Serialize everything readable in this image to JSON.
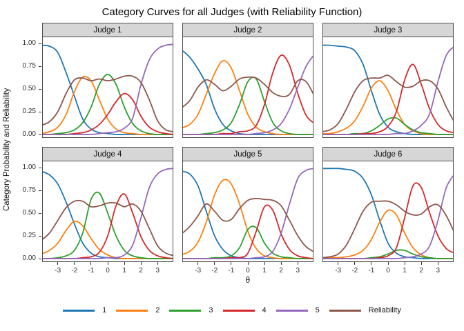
{
  "title": "Category Curves for all Judges (with Reliability Function)",
  "axes": {
    "y": {
      "label": "Category Probability and Reliability",
      "ticks": [
        "0.00",
        "0.25",
        "0.50",
        "0.75",
        "1.00"
      ],
      "tick_values": [
        0,
        0.25,
        0.5,
        0.75,
        1
      ]
    },
    "x": {
      "label": "θ",
      "ticks": [
        "-3",
        "-2",
        "-1",
        "0",
        "1",
        "2",
        "3"
      ],
      "tick_values": [
        -3,
        -2,
        -1,
        0,
        1,
        2,
        3
      ]
    }
  },
  "legend": [
    {
      "label": "1",
      "color": "#1f77b4"
    },
    {
      "label": "2",
      "color": "#ff7f0e"
    },
    {
      "label": "3",
      "color": "#2ca02c"
    },
    {
      "label": "4",
      "color": "#d62728"
    },
    {
      "label": "5",
      "color": "#9467bd"
    },
    {
      "label": "Reliability",
      "color": "#8c564b"
    }
  ],
  "style": {
    "strip_background": "#d6d6d6",
    "panel_border": "#4d4d4d",
    "tick_color": "#333333"
  },
  "chart_data": {
    "type": "line",
    "title": "Category Curves for all Judges (with Reliability Function)",
    "xlabel": "θ",
    "ylabel": "Category Probability and Reliability",
    "facet_layout": "2 rows x 3 cols",
    "grid": "off",
    "legend_position": "bottom",
    "xlim": [
      -3.9,
      3.9
    ],
    "ylim": [
      -0.03,
      1.06
    ],
    "x": [
      -4,
      -3.5,
      -3,
      -2.5,
      -2,
      -1.5,
      -1,
      -0.5,
      0,
      0.5,
      1,
      1.5,
      2,
      2.5,
      3,
      3.5,
      4
    ],
    "panels": [
      {
        "title": "Judge 1",
        "series": [
          {
            "name": "1",
            "values": [
              0.98,
              0.97,
              0.9,
              0.68,
              0.42,
              0.17,
              0.06,
              0.02,
              0.01,
              0,
              0,
              0,
              0,
              0,
              0,
              0,
              0
            ]
          },
          {
            "name": "2",
            "values": [
              0.01,
              0.03,
              0.08,
              0.22,
              0.47,
              0.63,
              0.59,
              0.38,
              0.17,
              0.06,
              0.02,
              0.01,
              0,
              0,
              0,
              0,
              0
            ]
          },
          {
            "name": "3",
            "values": [
              0,
              0,
              0.01,
              0.02,
              0.05,
              0.13,
              0.3,
              0.55,
              0.66,
              0.55,
              0.3,
              0.12,
              0.04,
              0.01,
              0,
              0,
              0
            ]
          },
          {
            "name": "4",
            "values": [
              0,
              0,
              0,
              0,
              0.01,
              0.02,
              0.05,
              0.11,
              0.22,
              0.36,
              0.45,
              0.38,
              0.2,
              0.08,
              0.03,
              0.01,
              0
            ]
          },
          {
            "name": "5",
            "values": [
              0,
              0,
              0,
              0,
              0,
              0,
              0,
              0.01,
              0.02,
              0.03,
              0.07,
              0.18,
              0.55,
              0.82,
              0.94,
              0.98,
              0.99
            ]
          },
          {
            "name": "Reliability",
            "values": [
              0.1,
              0.14,
              0.25,
              0.45,
              0.6,
              0.62,
              0.59,
              0.61,
              0.59,
              0.61,
              0.64,
              0.64,
              0.57,
              0.38,
              0.15,
              0.05,
              0.03
            ]
          }
        ]
      },
      {
        "title": "Judge 2",
        "series": [
          {
            "name": "1",
            "values": [
              0.93,
              0.85,
              0.72,
              0.55,
              0.28,
              0.11,
              0.04,
              0.01,
              0,
              0,
              0,
              0,
              0,
              0,
              0,
              0,
              0
            ]
          },
          {
            "name": "2",
            "values": [
              0.07,
              0.11,
              0.22,
              0.44,
              0.67,
              0.81,
              0.73,
              0.48,
              0.22,
              0.08,
              0.03,
              0.01,
              0,
              0,
              0,
              0,
              0
            ]
          },
          {
            "name": "3",
            "values": [
              0,
              0,
              0,
              0.01,
              0.02,
              0.05,
              0.13,
              0.33,
              0.58,
              0.61,
              0.36,
              0.13,
              0.04,
              0.01,
              0,
              0,
              0
            ]
          },
          {
            "name": "4",
            "values": [
              0,
              0,
              0,
              0,
              0,
              0.01,
              0.01,
              0.03,
              0.04,
              0.1,
              0.33,
              0.68,
              0.87,
              0.76,
              0.45,
              0.21,
              0.12
            ]
          },
          {
            "name": "5",
            "values": [
              0,
              0,
              0,
              0,
              0,
              0,
              0,
              0,
              0,
              0.01,
              0.02,
              0.05,
              0.12,
              0.28,
              0.52,
              0.75,
              0.88
            ]
          },
          {
            "name": "Reliability",
            "values": [
              0.29,
              0.37,
              0.52,
              0.6,
              0.55,
              0.48,
              0.53,
              0.61,
              0.63,
              0.62,
              0.55,
              0.46,
              0.42,
              0.44,
              0.59,
              0.58,
              0.42
            ]
          }
        ]
      },
      {
        "title": "Judge 3",
        "series": [
          {
            "name": "1",
            "values": [
              0.98,
              0.98,
              0.97,
              0.96,
              0.92,
              0.77,
              0.48,
              0.22,
              0.08,
              0.03,
              0.01,
              0,
              0,
              0,
              0,
              0,
              0
            ]
          },
          {
            "name": "2",
            "values": [
              0.01,
              0.01,
              0.03,
              0.07,
              0.15,
              0.31,
              0.51,
              0.59,
              0.48,
              0.27,
              0.11,
              0.04,
              0.01,
              0,
              0,
              0,
              0
            ]
          },
          {
            "name": "3",
            "values": [
              0,
              0,
              0,
              0,
              0.01,
              0.01,
              0.04,
              0.1,
              0.17,
              0.18,
              0.11,
              0.05,
              0.02,
              0.01,
              0,
              0,
              0
            ]
          },
          {
            "name": "4",
            "values": [
              0,
              0,
              0,
              0,
              0,
              0.01,
              0.01,
              0.03,
              0.09,
              0.25,
              0.6,
              0.77,
              0.55,
              0.28,
              0.11,
              0.04,
              0.02
            ]
          },
          {
            "name": "5",
            "values": [
              0,
              0,
              0,
              0,
              0,
              0,
              0,
              0,
              0,
              0.01,
              0.01,
              0.04,
              0.1,
              0.23,
              0.58,
              0.87,
              0.97
            ]
          },
          {
            "name": "Reliability",
            "values": [
              0.03,
              0.05,
              0.12,
              0.28,
              0.47,
              0.59,
              0.62,
              0.62,
              0.65,
              0.58,
              0.52,
              0.53,
              0.59,
              0.59,
              0.5,
              0.3,
              0.13
            ]
          }
        ]
      },
      {
        "title": "Judge 4",
        "series": [
          {
            "name": "1",
            "values": [
              0.96,
              0.92,
              0.82,
              0.62,
              0.38,
              0.17,
              0.06,
              0.02,
              0.01,
              0,
              0,
              0,
              0,
              0,
              0,
              0,
              0
            ]
          },
          {
            "name": "2",
            "values": [
              0.05,
              0.09,
              0.17,
              0.31,
              0.41,
              0.36,
              0.22,
              0.1,
              0.04,
              0.01,
              0,
              0,
              0,
              0,
              0,
              0,
              0
            ]
          },
          {
            "name": "3",
            "values": [
              0,
              0,
              0.01,
              0.03,
              0.09,
              0.28,
              0.65,
              0.72,
              0.5,
              0.25,
              0.09,
              0.03,
              0.01,
              0,
              0,
              0,
              0
            ]
          },
          {
            "name": "4",
            "values": [
              0,
              0,
              0,
              0,
              0,
              0.01,
              0.02,
              0.07,
              0.25,
              0.58,
              0.71,
              0.5,
              0.24,
              0.09,
              0.03,
              0.01,
              0
            ]
          },
          {
            "name": "5",
            "values": [
              0,
              0,
              0,
              0,
              0,
              0,
              0,
              0,
              0.01,
              0.01,
              0.04,
              0.15,
              0.45,
              0.78,
              0.93,
              0.98,
              0.99
            ]
          },
          {
            "name": "Reliability",
            "values": [
              0.2,
              0.28,
              0.42,
              0.56,
              0.63,
              0.63,
              0.57,
              0.58,
              0.61,
              0.61,
              0.57,
              0.6,
              0.52,
              0.33,
              0.14,
              0.06,
              0.03
            ]
          }
        ]
      },
      {
        "title": "Judge 5",
        "series": [
          {
            "name": "1",
            "values": [
              0.96,
              0.93,
              0.8,
              0.52,
              0.25,
              0.1,
              0.03,
              0.01,
              0,
              0,
              0,
              0,
              0,
              0,
              0,
              0,
              0
            ]
          },
          {
            "name": "2",
            "values": [
              0.04,
              0.08,
              0.18,
              0.4,
              0.7,
              0.86,
              0.82,
              0.6,
              0.3,
              0.11,
              0.03,
              0.01,
              0,
              0,
              0,
              0,
              0
            ]
          },
          {
            "name": "3",
            "values": [
              0,
              0,
              0,
              0,
              0.01,
              0.01,
              0.03,
              0.12,
              0.32,
              0.34,
              0.17,
              0.06,
              0.02,
              0.01,
              0,
              0,
              0
            ]
          },
          {
            "name": "4",
            "values": [
              0,
              0,
              0,
              0,
              0,
              0,
              0.01,
              0.01,
              0.06,
              0.3,
              0.57,
              0.53,
              0.27,
              0.1,
              0.03,
              0.01,
              0
            ]
          },
          {
            "name": "5",
            "values": [
              0,
              0,
              0,
              0,
              0,
              0,
              0,
              0,
              0,
              0.01,
              0.02,
              0.08,
              0.28,
              0.6,
              0.88,
              0.97,
              0.99
            ]
          },
          {
            "name": "Reliability",
            "values": [
              0.27,
              0.35,
              0.47,
              0.6,
              0.52,
              0.42,
              0.43,
              0.55,
              0.64,
              0.66,
              0.65,
              0.64,
              0.58,
              0.42,
              0.25,
              0.13,
              0.07
            ]
          }
        ]
      },
      {
        "title": "Judge 6",
        "series": [
          {
            "name": "1",
            "values": [
              0.99,
              0.99,
              0.99,
              0.98,
              0.96,
              0.88,
              0.7,
              0.42,
              0.17,
              0.06,
              0.02,
              0.01,
              0,
              0,
              0,
              0,
              0
            ]
          },
          {
            "name": "2",
            "values": [
              0,
              0.01,
              0.01,
              0.02,
              0.04,
              0.09,
              0.21,
              0.4,
              0.53,
              0.48,
              0.28,
              0.12,
              0.04,
              0.01,
              0,
              0,
              0
            ]
          },
          {
            "name": "3",
            "values": [
              0,
              0,
              0,
              0,
              0,
              0,
              0.01,
              0.02,
              0.05,
              0.09,
              0.09,
              0.05,
              0.02,
              0.01,
              0,
              0,
              0
            ]
          },
          {
            "name": "4",
            "values": [
              0,
              0,
              0,
              0,
              0,
              0,
              0,
              0.01,
              0.03,
              0.12,
              0.45,
              0.8,
              0.78,
              0.5,
              0.25,
              0.11,
              0.06
            ]
          },
          {
            "name": "5",
            "values": [
              0,
              0,
              0,
              0,
              0,
              0,
              0,
              0,
              0,
              0,
              0.01,
              0.02,
              0.05,
              0.14,
              0.42,
              0.78,
              0.93
            ]
          },
          {
            "name": "Reliability",
            "values": [
              0.01,
              0.02,
              0.05,
              0.15,
              0.33,
              0.52,
              0.62,
              0.63,
              0.63,
              0.59,
              0.52,
              0.48,
              0.49,
              0.57,
              0.59,
              0.47,
              0.28
            ]
          }
        ]
      }
    ]
  }
}
